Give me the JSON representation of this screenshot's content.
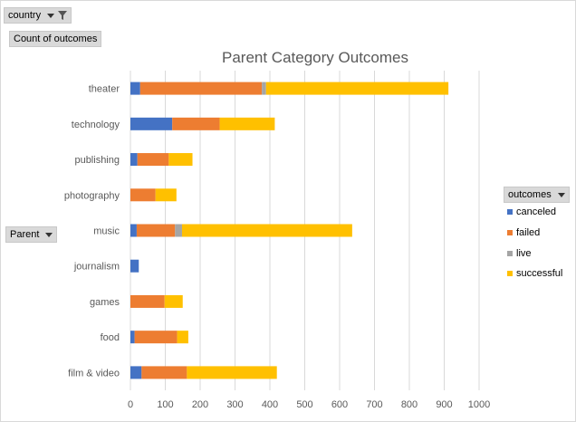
{
  "filters": {
    "country_label": "country",
    "values_label": "Count of outcomes",
    "row_field_label": "Parent",
    "legend_field_label": "outcomes"
  },
  "legend": [
    {
      "name": "canceled",
      "color": "#4472c4"
    },
    {
      "name": "failed",
      "color": "#ed7d31"
    },
    {
      "name": "live",
      "color": "#a5a5a5"
    },
    {
      "name": "successful",
      "color": "#ffc000"
    }
  ],
  "chart_data": {
    "type": "bar",
    "orientation": "horizontal",
    "stacked": true,
    "title": "Parent Category Outcomes",
    "categories": [
      "theater",
      "technology",
      "publishing",
      "photography",
      "music",
      "journalism",
      "games",
      "food",
      "film & video"
    ],
    "series": [
      {
        "name": "canceled",
        "color": "#4472c4",
        "values": [
          28,
          120,
          20,
          0,
          18,
          24,
          0,
          12,
          32
        ]
      },
      {
        "name": "failed",
        "color": "#ed7d31",
        "values": [
          349,
          136,
          90,
          72,
          110,
          0,
          98,
          122,
          130
        ]
      },
      {
        "name": "live",
        "color": "#a5a5a5",
        "values": [
          12,
          0,
          0,
          0,
          20,
          0,
          0,
          0,
          0
        ]
      },
      {
        "name": "successful",
        "color": "#ffc000",
        "values": [
          523,
          158,
          68,
          60,
          488,
          0,
          52,
          32,
          258
        ]
      }
    ],
    "xlim": [
      0,
      1000
    ],
    "xticks": [
      0,
      100,
      200,
      300,
      400,
      500,
      600,
      700,
      800,
      900,
      1000
    ],
    "gridlines": "vertical",
    "legend_position": "right"
  }
}
